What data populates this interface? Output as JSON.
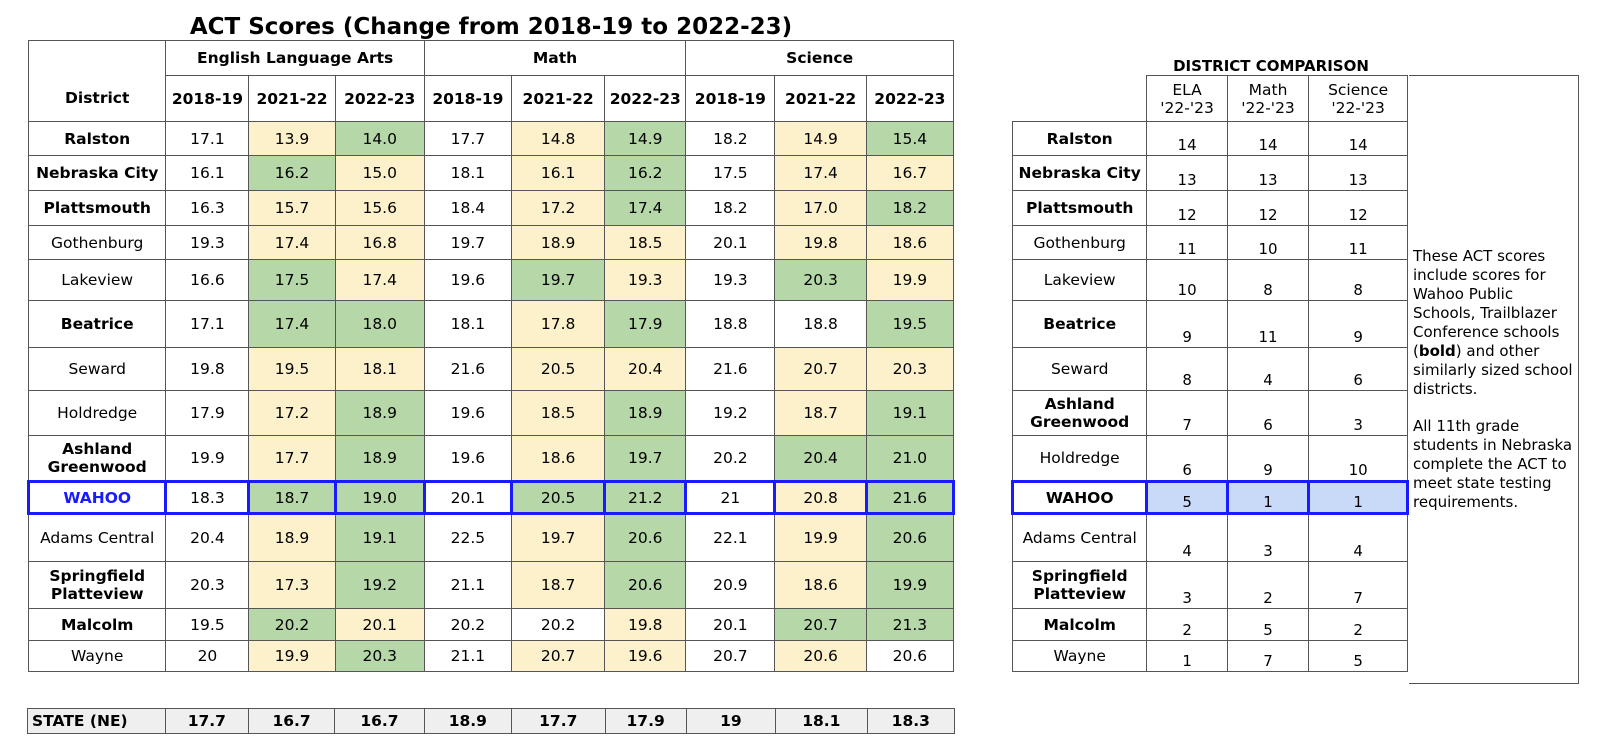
{
  "title": "ACT Scores (Change from 2018-19 to 2022-23)",
  "main_table": {
    "district_header": "District",
    "groups": [
      "English Language Arts",
      "Math",
      "Science"
    ],
    "years": [
      "2018-19",
      "2021-22",
      "2022-23"
    ],
    "rows": [
      {
        "name": "Ralston",
        "bold": true,
        "values": [
          "17.1",
          "13.9",
          "14.0",
          "17.7",
          "14.8",
          "14.9",
          "18.2",
          "14.9",
          "15.4"
        ],
        "shades": [
          "w",
          "y",
          "g",
          "w",
          "y",
          "g",
          "w",
          "y",
          "g"
        ]
      },
      {
        "name": "Nebraska City",
        "bold": true,
        "values": [
          "16.1",
          "16.2",
          "15.0",
          "18.1",
          "16.1",
          "16.2",
          "17.5",
          "17.4",
          "16.7"
        ],
        "shades": [
          "w",
          "g",
          "y",
          "w",
          "y",
          "g",
          "w",
          "y",
          "y"
        ]
      },
      {
        "name": "Plattsmouth",
        "bold": true,
        "values": [
          "16.3",
          "15.7",
          "15.6",
          "18.4",
          "17.2",
          "17.4",
          "18.2",
          "17.0",
          "18.2"
        ],
        "shades": [
          "w",
          "y",
          "y",
          "w",
          "y",
          "g",
          "w",
          "y",
          "g"
        ]
      },
      {
        "name": "Gothenburg",
        "bold": false,
        "values": [
          "19.3",
          "17.4",
          "16.8",
          "19.7",
          "18.9",
          "18.5",
          "20.1",
          "19.8",
          "18.6"
        ],
        "shades": [
          "w",
          "y",
          "y",
          "w",
          "y",
          "y",
          "w",
          "y",
          "y"
        ]
      },
      {
        "name": "Lakeview",
        "bold": false,
        "values": [
          "16.6",
          "17.5",
          "17.4",
          "19.6",
          "19.7",
          "19.3",
          "19.3",
          "20.3",
          "19.9"
        ],
        "shades": [
          "w",
          "g",
          "y",
          "w",
          "g",
          "y",
          "w",
          "g",
          "y"
        ]
      },
      {
        "name": "Beatrice",
        "bold": true,
        "values": [
          "17.1",
          "17.4",
          "18.0",
          "18.1",
          "17.8",
          "17.9",
          "18.8",
          "18.8",
          "19.5"
        ],
        "shades": [
          "w",
          "g",
          "g",
          "w",
          "y",
          "g",
          "w",
          "w",
          "g"
        ]
      },
      {
        "name": "Seward",
        "bold": false,
        "values": [
          "19.8",
          "19.5",
          "18.1",
          "21.6",
          "20.5",
          "20.4",
          "21.6",
          "20.7",
          "20.3"
        ],
        "shades": [
          "w",
          "y",
          "y",
          "w",
          "y",
          "y",
          "w",
          "y",
          "y"
        ]
      },
      {
        "name": "Holdredge",
        "bold": false,
        "values": [
          "17.9",
          "17.2",
          "18.9",
          "19.6",
          "18.5",
          "18.9",
          "19.2",
          "18.7",
          "19.1"
        ],
        "shades": [
          "w",
          "y",
          "g",
          "w",
          "y",
          "g",
          "w",
          "y",
          "g"
        ]
      },
      {
        "name": "Ashland\nGreenwood",
        "bold": true,
        "values": [
          "19.9",
          "17.7",
          "18.9",
          "19.6",
          "18.6",
          "19.7",
          "20.2",
          "20.4",
          "21.0"
        ],
        "shades": [
          "w",
          "y",
          "g",
          "w",
          "y",
          "g",
          "w",
          "g",
          "g"
        ]
      },
      {
        "name": "WAHOO",
        "bold": true,
        "wahoo": true,
        "values": [
          "18.3",
          "18.7",
          "19.0",
          "20.1",
          "20.5",
          "21.2",
          "21",
          "20.8",
          "21.6"
        ],
        "shades": [
          "w",
          "g",
          "g",
          "w",
          "g",
          "g",
          "w",
          "y",
          "g"
        ]
      },
      {
        "name": "Adams Central",
        "bold": false,
        "values": [
          "20.4",
          "18.9",
          "19.1",
          "22.5",
          "19.7",
          "20.6",
          "22.1",
          "19.9",
          "20.6"
        ],
        "shades": [
          "w",
          "y",
          "g",
          "w",
          "y",
          "g",
          "w",
          "y",
          "g"
        ]
      },
      {
        "name": "Springfield\nPlatteview",
        "bold": true,
        "values": [
          "20.3",
          "17.3",
          "19.2",
          "21.1",
          "18.7",
          "20.6",
          "20.9",
          "18.6",
          "19.9"
        ],
        "shades": [
          "w",
          "y",
          "g",
          "w",
          "y",
          "g",
          "w",
          "y",
          "g"
        ]
      },
      {
        "name": "Malcolm",
        "bold": true,
        "values": [
          "19.5",
          "20.2",
          "20.1",
          "20.2",
          "20.2",
          "19.8",
          "20.1",
          "20.7",
          "21.3"
        ],
        "shades": [
          "w",
          "g",
          "y",
          "w",
          "w",
          "y",
          "w",
          "g",
          "g"
        ]
      },
      {
        "name": "Wayne",
        "bold": false,
        "values": [
          "20",
          "19.9",
          "20.3",
          "21.1",
          "20.7",
          "19.6",
          "20.7",
          "20.6",
          "20.6"
        ],
        "shades": [
          "w",
          "y",
          "g",
          "w",
          "y",
          "y",
          "w",
          "y",
          "w"
        ]
      }
    ],
    "heights": [
      34,
      35,
      35,
      34,
      41,
      47,
      43,
      45,
      46,
      32,
      48,
      47,
      32,
      31
    ]
  },
  "state_row": {
    "label": "STATE (NE)",
    "values": [
      "17.7",
      "16.7",
      "16.7",
      "18.9",
      "17.7",
      "17.9",
      "19",
      "18.1",
      "18.3"
    ]
  },
  "comparison": {
    "title": "DISTRICT COMPARISON",
    "headers": [
      "ELA\n'22-'23",
      "Math\n'22-'23",
      "Science\n'22-'23"
    ],
    "rows": [
      {
        "name": "Ralston",
        "bold": true,
        "ranks": [
          "14",
          "14",
          "14"
        ]
      },
      {
        "name": "Nebraska City",
        "bold": true,
        "ranks": [
          "13",
          "13",
          "13"
        ]
      },
      {
        "name": "Plattsmouth",
        "bold": true,
        "ranks": [
          "12",
          "12",
          "12"
        ]
      },
      {
        "name": "Gothenburg",
        "bold": false,
        "ranks": [
          "11",
          "10",
          "11"
        ]
      },
      {
        "name": "Lakeview",
        "bold": false,
        "ranks": [
          "10",
          "8",
          "8"
        ]
      },
      {
        "name": "Beatrice",
        "bold": true,
        "ranks": [
          "9",
          "11",
          "9"
        ]
      },
      {
        "name": "Seward",
        "bold": false,
        "ranks": [
          "8",
          "4",
          "6"
        ]
      },
      {
        "name": "Ashland\nGreenwood",
        "bold": true,
        "ranks": [
          "7",
          "6",
          "3"
        ]
      },
      {
        "name": "Holdredge",
        "bold": false,
        "ranks": [
          "6",
          "9",
          "10"
        ]
      },
      {
        "name": "WAHOO",
        "bold": true,
        "wahoo": true,
        "ranks": [
          "5",
          "1",
          "1"
        ]
      },
      {
        "name": "Adams Central",
        "bold": false,
        "ranks": [
          "4",
          "3",
          "4"
        ]
      },
      {
        "name": "Springfield\nPlatteview",
        "bold": true,
        "ranks": [
          "3",
          "2",
          "7"
        ]
      },
      {
        "name": "Malcolm",
        "bold": true,
        "ranks": [
          "2",
          "5",
          "2"
        ]
      },
      {
        "name": "Wayne",
        "bold": false,
        "ranks": [
          "1",
          "7",
          "5"
        ]
      }
    ]
  },
  "note": {
    "para1_a": "These ACT scores include scores for Wahoo Public Schools, Trailblazer Conference schools (",
    "para1_bold": "bold",
    "para1_b": ") and other similarly sized school districts.",
    "para2": "All 11th grade students in Nebraska complete the ACT to meet state testing requirements."
  },
  "colors": {
    "increase_green": "#b6d7a8",
    "decrease_yellow": "#fdf1cc",
    "wahoo_blue": "#1a1aff",
    "wahoo_rank_bg": "#c9daf8",
    "state_bg": "#efefef"
  }
}
